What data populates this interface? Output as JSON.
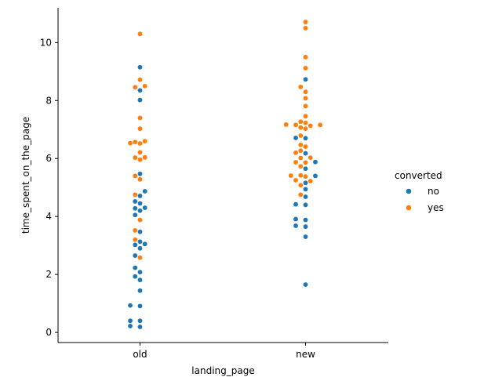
{
  "chart_data": {
    "type": "scatter",
    "subtype": "swarm",
    "xlabel": "landing_page",
    "ylabel": "time_spent_on_the_page",
    "categories": [
      "old",
      "new"
    ],
    "ylim": [
      -0.35,
      11.2
    ],
    "yticks": [
      0,
      2,
      4,
      6,
      8,
      10
    ],
    "grid": false,
    "legend": {
      "title": "converted",
      "placement": "right",
      "entries": [
        {
          "label": "no",
          "color": "#1f77b4"
        },
        {
          "label": "yes",
          "color": "#ff7f0e"
        }
      ]
    },
    "series": [
      {
        "name": "no",
        "color": "#1f77b4",
        "points": [
          {
            "x": "old",
            "y": 9.15
          },
          {
            "x": "old",
            "y": 8.35
          },
          {
            "x": "old",
            "y": 8.02
          },
          {
            "x": "old",
            "y": 5.47
          },
          {
            "x": "old",
            "y": 4.87
          },
          {
            "x": "old",
            "y": 4.71
          },
          {
            "x": "old",
            "y": 4.52
          },
          {
            "x": "old",
            "y": 4.45
          },
          {
            "x": "old",
            "y": 4.3
          },
          {
            "x": "old",
            "y": 4.28
          },
          {
            "x": "old",
            "y": 4.2
          },
          {
            "x": "old",
            "y": 4.05
          },
          {
            "x": "old",
            "y": 3.47
          },
          {
            "x": "old",
            "y": 3.13
          },
          {
            "x": "old",
            "y": 3.05
          },
          {
            "x": "old",
            "y": 3.02
          },
          {
            "x": "old",
            "y": 2.9
          },
          {
            "x": "old",
            "y": 2.65
          },
          {
            "x": "old",
            "y": 2.23
          },
          {
            "x": "old",
            "y": 2.08
          },
          {
            "x": "old",
            "y": 1.93
          },
          {
            "x": "old",
            "y": 1.81
          },
          {
            "x": "old",
            "y": 1.44
          },
          {
            "x": "old",
            "y": 0.93
          },
          {
            "x": "old",
            "y": 0.91
          },
          {
            "x": "old",
            "y": 0.4
          },
          {
            "x": "old",
            "y": 0.4
          },
          {
            "x": "old",
            "y": 0.22
          },
          {
            "x": "old",
            "y": 0.19
          },
          {
            "x": "new",
            "y": 8.73
          },
          {
            "x": "new",
            "y": 6.71
          },
          {
            "x": "new",
            "y": 6.7
          },
          {
            "x": "new",
            "y": 6.18
          },
          {
            "x": "new",
            "y": 5.88
          },
          {
            "x": "new",
            "y": 5.65
          },
          {
            "x": "new",
            "y": 5.4
          },
          {
            "x": "new",
            "y": 5.16
          },
          {
            "x": "new",
            "y": 4.94
          },
          {
            "x": "new",
            "y": 4.68
          },
          {
            "x": "new",
            "y": 4.42
          },
          {
            "x": "new",
            "y": 4.4
          },
          {
            "x": "new",
            "y": 3.91
          },
          {
            "x": "new",
            "y": 3.88
          },
          {
            "x": "new",
            "y": 3.68
          },
          {
            "x": "new",
            "y": 3.65
          },
          {
            "x": "new",
            "y": 3.3
          },
          {
            "x": "new",
            "y": 1.65
          }
        ]
      },
      {
        "name": "yes",
        "color": "#ff7f0e",
        "points": [
          {
            "x": "old",
            "y": 10.3
          },
          {
            "x": "old",
            "y": 8.72
          },
          {
            "x": "old",
            "y": 8.5
          },
          {
            "x": "old",
            "y": 8.46
          },
          {
            "x": "old",
            "y": 7.4
          },
          {
            "x": "old",
            "y": 7.03
          },
          {
            "x": "old",
            "y": 6.6
          },
          {
            "x": "old",
            "y": 6.57
          },
          {
            "x": "old",
            "y": 6.53
          },
          {
            "x": "old",
            "y": 6.52
          },
          {
            "x": "old",
            "y": 6.21
          },
          {
            "x": "old",
            "y": 6.04
          },
          {
            "x": "old",
            "y": 6.03
          },
          {
            "x": "old",
            "y": 5.96
          },
          {
            "x": "old",
            "y": 5.4
          },
          {
            "x": "old",
            "y": 5.28
          },
          {
            "x": "old",
            "y": 4.75
          },
          {
            "x": "old",
            "y": 3.88
          },
          {
            "x": "old",
            "y": 3.52
          },
          {
            "x": "old",
            "y": 3.2
          },
          {
            "x": "old",
            "y": 2.58
          },
          {
            "x": "new",
            "y": 10.71
          },
          {
            "x": "new",
            "y": 10.5
          },
          {
            "x": "new",
            "y": 9.5
          },
          {
            "x": "new",
            "y": 9.12
          },
          {
            "x": "new",
            "y": 8.47
          },
          {
            "x": "new",
            "y": 8.3
          },
          {
            "x": "new",
            "y": 8.08
          },
          {
            "x": "new",
            "y": 7.81
          },
          {
            "x": "new",
            "y": 7.46
          },
          {
            "x": "new",
            "y": 7.27
          },
          {
            "x": "new",
            "y": 7.23
          },
          {
            "x": "new",
            "y": 7.17
          },
          {
            "x": "new",
            "y": 7.16
          },
          {
            "x": "new",
            "y": 7.16
          },
          {
            "x": "new",
            "y": 7.13
          },
          {
            "x": "new",
            "y": 7.07
          },
          {
            "x": "new",
            "y": 7.03
          },
          {
            "x": "new",
            "y": 6.79
          },
          {
            "x": "new",
            "y": 6.47
          },
          {
            "x": "new",
            "y": 6.41
          },
          {
            "x": "new",
            "y": 6.27
          },
          {
            "x": "new",
            "y": 6.2
          },
          {
            "x": "new",
            "y": 6.03
          },
          {
            "x": "new",
            "y": 6.02
          },
          {
            "x": "new",
            "y": 5.87
          },
          {
            "x": "new",
            "y": 5.86
          },
          {
            "x": "new",
            "y": 5.73
          },
          {
            "x": "new",
            "y": 5.42
          },
          {
            "x": "new",
            "y": 5.41
          },
          {
            "x": "new",
            "y": 5.38
          },
          {
            "x": "new",
            "y": 5.25
          },
          {
            "x": "new",
            "y": 5.22
          },
          {
            "x": "new",
            "y": 5.08
          },
          {
            "x": "new",
            "y": 4.75
          }
        ]
      }
    ]
  }
}
